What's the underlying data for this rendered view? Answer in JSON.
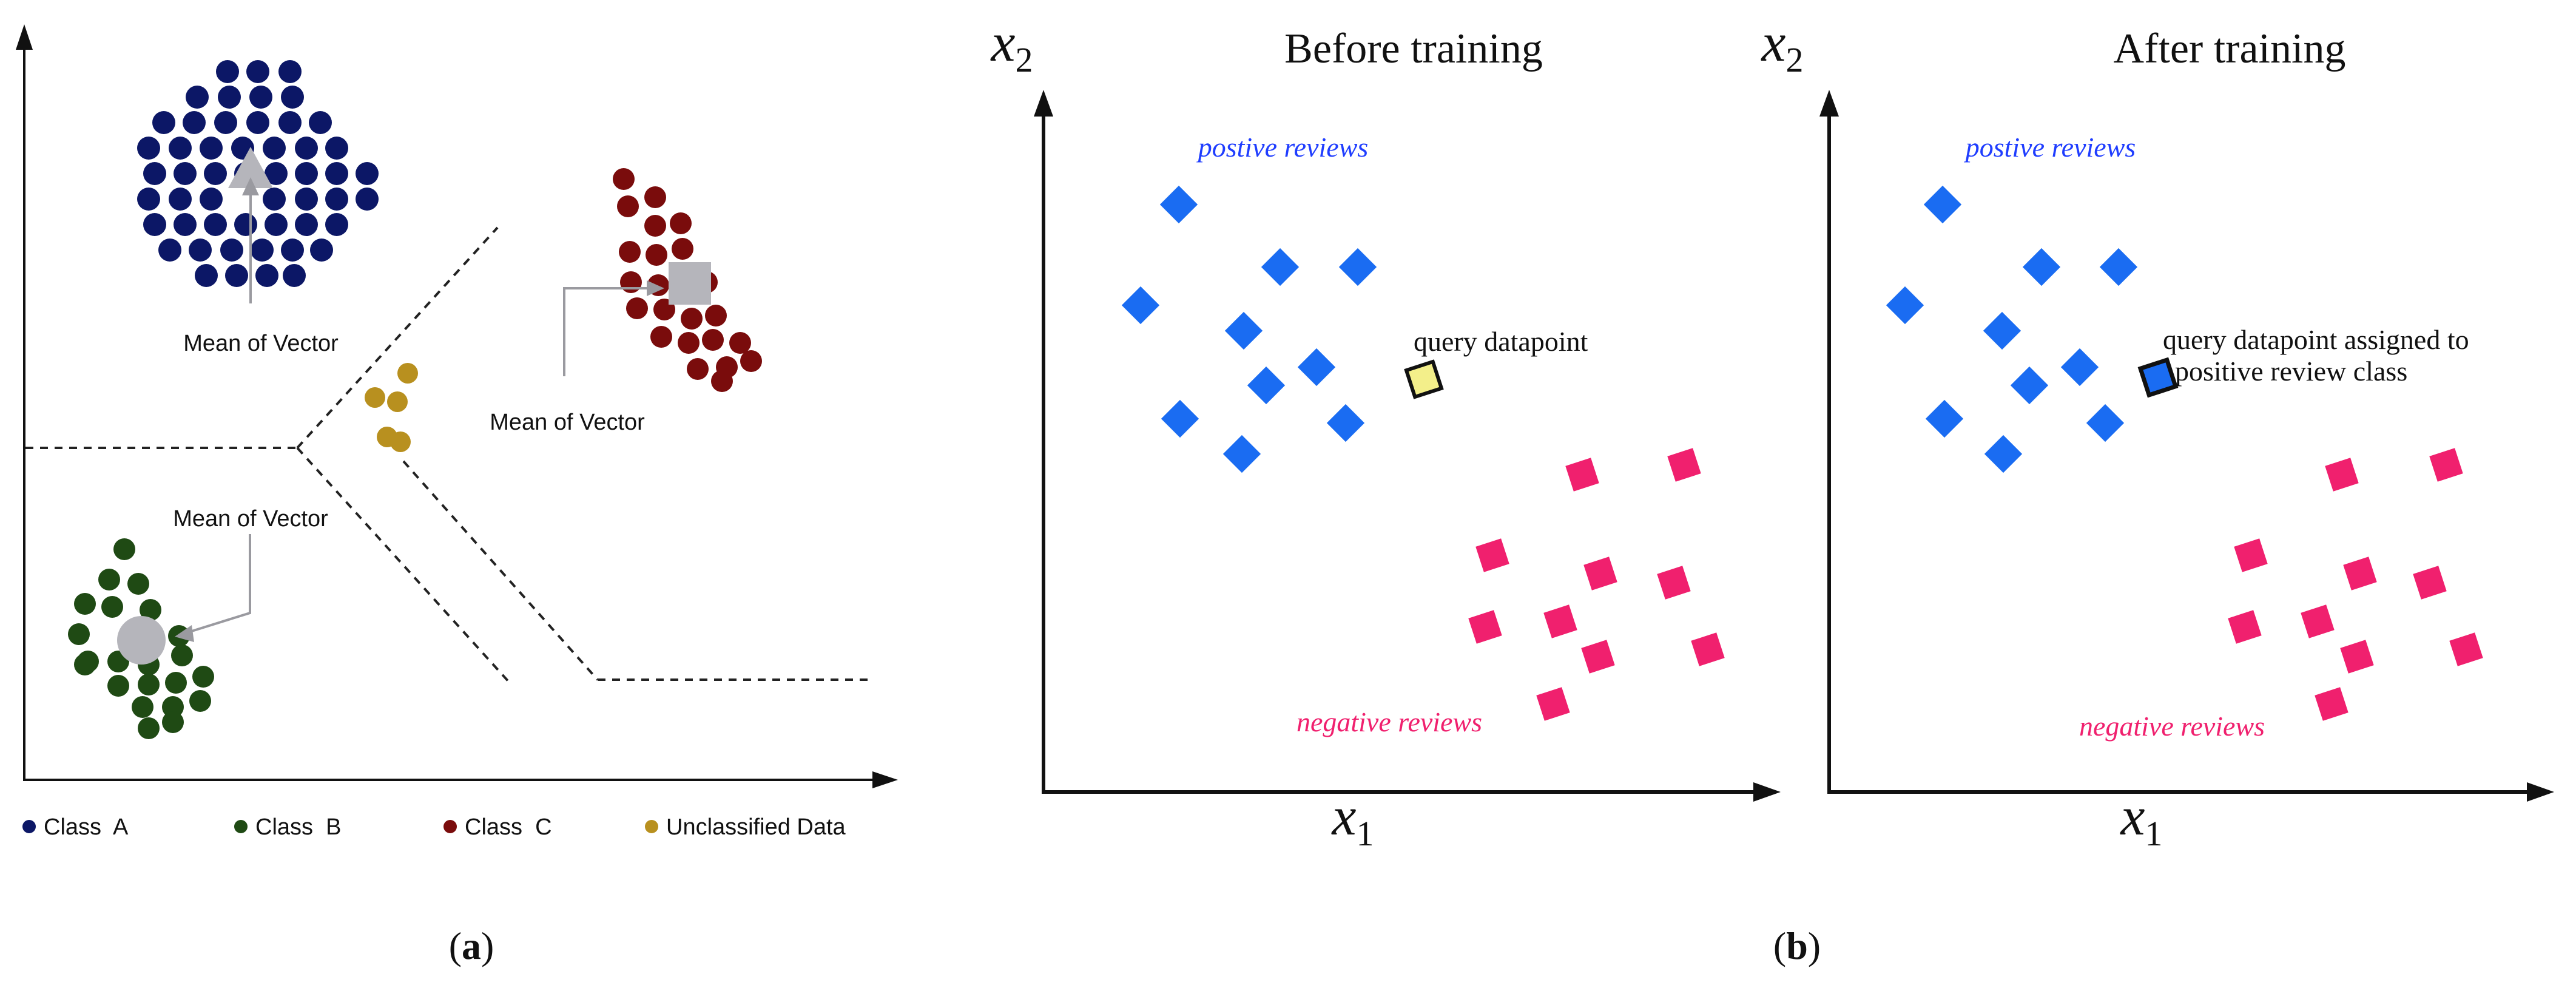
{
  "panel_a": {
    "mean_labels": [
      "Mean of Vector",
      "Mean of Vector",
      "Mean of Vector"
    ],
    "legend": [
      {
        "label": "Class  A",
        "color": "#0c1766"
      },
      {
        "label": "Class  B",
        "color": "#1f4a14"
      },
      {
        "label": "Class  C",
        "color": "#7a0c0c"
      },
      {
        "label": "Unclassified Data",
        "color": "#b8901f"
      }
    ],
    "caption": "(a)",
    "caption_letter": "a",
    "colors": {
      "class_a": "#0c1766",
      "class_b": "#1f4a14",
      "class_c": "#7a0c0c",
      "unclassified": "#b8901f",
      "mean_marker": "#b5b5bb"
    }
  },
  "panel_b": {
    "caption": "(b)",
    "caption_letter": "b",
    "axis_x": "x1",
    "axis_y": "x2",
    "before": {
      "title": "Before training",
      "positive_label": "postive reviews",
      "negative_label": "negative reviews",
      "query_label": "query datapoint"
    },
    "after": {
      "title": "After training",
      "positive_label": "postive reviews",
      "negative_label": "negative reviews",
      "query_label_line1": "query datapoint assigned to",
      "query_label_line2": "positive review class"
    },
    "colors": {
      "positive": "#1a6cf2",
      "negative": "#f0206e",
      "positive_label": "#1f3dff",
      "negative_label": "#f0206e",
      "query_before": "#f3ef8a"
    }
  }
}
